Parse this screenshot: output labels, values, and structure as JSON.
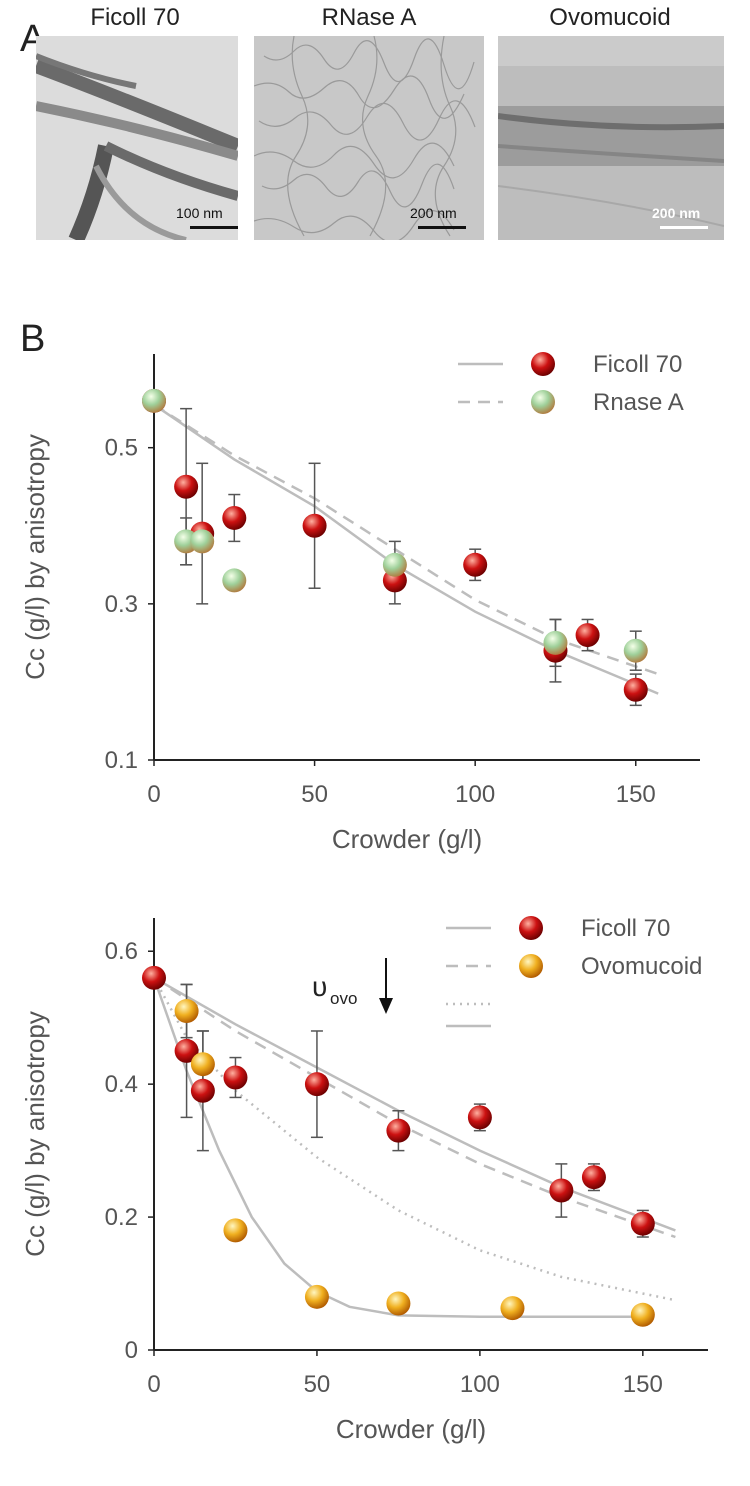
{
  "panel_a": {
    "letter": "A",
    "images": [
      {
        "title": "Ficoll 70",
        "scale": "100 nm",
        "scale_color": "#111111"
      },
      {
        "title": "RNase A",
        "scale": "200 nm",
        "scale_color": "#111111"
      },
      {
        "title": "Ovomucoid",
        "scale": "200 nm",
        "scale_color": "#ffffff"
      }
    ]
  },
  "panel_b": {
    "letter": "B"
  },
  "colors": {
    "axis": "#222222",
    "tick_label": "#555555",
    "fit_line": "#bdbdbd",
    "error_bar": "#555555",
    "red_sphere": "#cc1111",
    "green_sphere": "#9fd09a",
    "yellow_sphere": "#f0b020"
  },
  "chart_data": [
    {
      "type": "scatter",
      "xlabel": "Crowder (g/l)",
      "ylabel": "Cc (g/l) by anisotropy",
      "xlim": [
        0,
        170
      ],
      "ylim": [
        0.1,
        0.62
      ],
      "xticks": [
        "0",
        "50",
        "100",
        "150"
      ],
      "yticks": [
        "0.1",
        "0.3",
        "0.5"
      ],
      "legend_position": "top-right",
      "legend": [
        {
          "label": "Ficoll 70",
          "line": "solid",
          "marker": "red"
        },
        {
          "label": "Rnase A",
          "line": "dashed",
          "marker": "green"
        }
      ],
      "series": [
        {
          "name": "Ficoll 70",
          "marker": "red",
          "points": [
            {
              "x": 0,
              "y": 0.56
            },
            {
              "x": 10,
              "y": 0.45,
              "err": 0.1
            },
            {
              "x": 15,
              "y": 0.39,
              "err": 0.09
            },
            {
              "x": 25,
              "y": 0.41,
              "err": 0.03
            },
            {
              "x": 50,
              "y": 0.4,
              "err": 0.08
            },
            {
              "x": 75,
              "y": 0.33,
              "err": 0.03
            },
            {
              "x": 100,
              "y": 0.35,
              "err": 0.02
            },
            {
              "x": 125,
              "y": 0.24,
              "err": 0.04
            },
            {
              "x": 135,
              "y": 0.26,
              "err": 0.02
            },
            {
              "x": 150,
              "y": 0.19,
              "err": 0.02
            }
          ]
        },
        {
          "name": "Rnase A",
          "marker": "green",
          "points": [
            {
              "x": 0,
              "y": 0.56
            },
            {
              "x": 10,
              "y": 0.38,
              "err": 0.03
            },
            {
              "x": 15,
              "y": 0.38
            },
            {
              "x": 25,
              "y": 0.33
            },
            {
              "x": 75,
              "y": 0.35,
              "err": 0.03
            },
            {
              "x": 125,
              "y": 0.25,
              "err": 0.03
            },
            {
              "x": 150,
              "y": 0.24,
              "err": 0.025
            }
          ]
        }
      ],
      "fits": [
        {
          "style": "solid",
          "x": [
            0,
            25,
            50,
            75,
            100,
            125,
            157
          ],
          "y": [
            0.555,
            0.485,
            0.425,
            0.35,
            0.29,
            0.24,
            0.185
          ]
        },
        {
          "style": "dashed",
          "x": [
            0,
            25,
            50,
            75,
            100,
            125,
            157
          ],
          "y": [
            0.555,
            0.49,
            0.435,
            0.37,
            0.305,
            0.255,
            0.21
          ]
        }
      ]
    },
    {
      "type": "scatter",
      "xlabel": "Crowder (g/l)",
      "ylabel": "Cc (g/l) by anisotropy",
      "xlim": [
        0,
        170
      ],
      "ylim": [
        0,
        0.65
      ],
      "xticks": [
        "0",
        "50",
        "100",
        "150"
      ],
      "yticks": [
        "0",
        "0.2",
        "0.4",
        "0.6"
      ],
      "legend_position": "top-right",
      "legend": [
        {
          "label": "Ficoll 70",
          "line": "solid",
          "marker": "red"
        },
        {
          "label": "Ovomucoid",
          "line": "dashed",
          "marker": "yellow"
        }
      ],
      "annotation": {
        "symbol": "υ",
        "subscript": "ovo"
      },
      "series": [
        {
          "name": "Ficoll 70",
          "marker": "red",
          "points": [
            {
              "x": 0,
              "y": 0.56
            },
            {
              "x": 10,
              "y": 0.45,
              "err": 0.1
            },
            {
              "x": 15,
              "y": 0.39,
              "err": 0.09
            },
            {
              "x": 25,
              "y": 0.41,
              "err": 0.03
            },
            {
              "x": 50,
              "y": 0.4,
              "err": 0.08
            },
            {
              "x": 75,
              "y": 0.33,
              "err": 0.03
            },
            {
              "x": 100,
              "y": 0.35,
              "err": 0.02
            },
            {
              "x": 125,
              "y": 0.24,
              "err": 0.04
            },
            {
              "x": 135,
              "y": 0.26,
              "err": 0.02
            },
            {
              "x": 150,
              "y": 0.19,
              "err": 0.02
            }
          ]
        },
        {
          "name": "Ovomucoid",
          "marker": "yellow",
          "points": [
            {
              "x": 10,
              "y": 0.51,
              "err": 0.04
            },
            {
              "x": 15,
              "y": 0.43,
              "err": 0.05
            },
            {
              "x": 25,
              "y": 0.18
            },
            {
              "x": 50,
              "y": 0.08
            },
            {
              "x": 75,
              "y": 0.07
            },
            {
              "x": 110,
              "y": 0.063
            },
            {
              "x": 150,
              "y": 0.053
            }
          ]
        }
      ],
      "fits": [
        {
          "style": "solid",
          "x": [
            0,
            25,
            50,
            75,
            100,
            125,
            160
          ],
          "y": [
            0.56,
            0.49,
            0.425,
            0.36,
            0.3,
            0.245,
            0.18
          ]
        },
        {
          "style": "dashed",
          "x": [
            0,
            25,
            50,
            75,
            100,
            125,
            160
          ],
          "y": [
            0.56,
            0.48,
            0.41,
            0.34,
            0.28,
            0.23,
            0.17
          ]
        },
        {
          "style": "dotted",
          "x": [
            0,
            10,
            25,
            50,
            75,
            100,
            125,
            160
          ],
          "y": [
            0.56,
            0.47,
            0.39,
            0.29,
            0.21,
            0.15,
            0.11,
            0.075
          ]
        },
        {
          "style": "solid",
          "x": [
            0,
            10,
            20,
            30,
            40,
            50,
            60,
            75,
            100,
            150
          ],
          "y": [
            0.56,
            0.42,
            0.3,
            0.2,
            0.13,
            0.088,
            0.065,
            0.052,
            0.05,
            0.05
          ]
        }
      ]
    }
  ]
}
